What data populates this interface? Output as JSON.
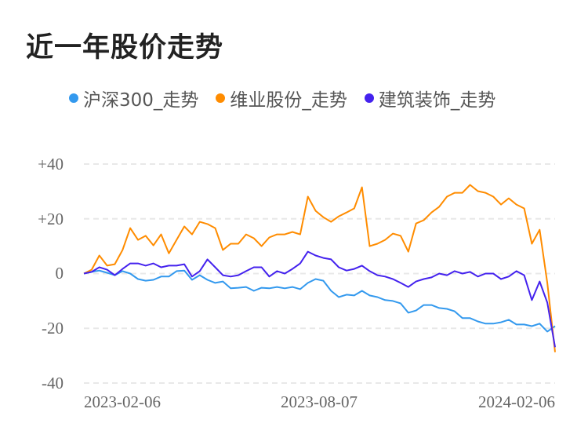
{
  "title": "近一年股价走势",
  "chart_data": {
    "type": "line",
    "title": "近一年股价走势",
    "x_tick_labels": [
      "2023-02-06",
      "2023-08-07",
      "2024-02-06"
    ],
    "y_tick_labels": [
      "+40",
      "+20",
      "0",
      "-20",
      "-40"
    ],
    "ylim": [
      -40,
      40
    ],
    "y_ticks": [
      40,
      20,
      0,
      -20,
      -40
    ],
    "grid": true,
    "legend_placement": "top",
    "series": [
      {
        "name": "沪深300_走势",
        "color": "#3399ee",
        "values": [
          0,
          0.6,
          1.1,
          0.3,
          -0.6,
          0.9,
          0,
          -2.0,
          -2.6,
          -2.3,
          -1.1,
          -1.1,
          0.9,
          1.1,
          -2.3,
          -0.6,
          -2.3,
          -3.4,
          -2.9,
          -5.4,
          -5.2,
          -4.9,
          -6.3,
          -5.2,
          -5.4,
          -4.9,
          -5.4,
          -4.9,
          -5.7,
          -3.4,
          -2.0,
          -2.6,
          -6.3,
          -8.6,
          -7.7,
          -8.0,
          -6.3,
          -8.0,
          -8.6,
          -9.7,
          -10.0,
          -10.9,
          -14.3,
          -13.5,
          -11.5,
          -11.5,
          -12.6,
          -12.9,
          -13.8,
          -16.3,
          -16.3,
          -17.5,
          -18.3,
          -18.3,
          -17.8,
          -16.9,
          -18.6,
          -18.6,
          -19.2,
          -18.3,
          -21.2,
          -19.2
        ]
      },
      {
        "name": "维业股份_走势",
        "color": "#ff8c00",
        "values": [
          0,
          1.4,
          6.6,
          2.9,
          3.4,
          8.6,
          16.6,
          12.3,
          13.8,
          10.3,
          14.3,
          7.4,
          12.3,
          17.2,
          14.3,
          18.9,
          18.1,
          16.6,
          8.6,
          10.9,
          10.9,
          14.3,
          12.9,
          10.0,
          13.2,
          14.3,
          14.3,
          15.2,
          14.3,
          28.1,
          22.9,
          20.6,
          18.9,
          20.9,
          22.3,
          23.8,
          31.5,
          10.0,
          10.9,
          12.3,
          14.6,
          13.8,
          8.0,
          18.3,
          19.5,
          22.3,
          24.4,
          28.1,
          29.5,
          29.5,
          32.4,
          30.1,
          29.5,
          28.1,
          25.2,
          27.5,
          25.2,
          23.8,
          10.9,
          16.0,
          -3.4,
          -28.7
        ]
      },
      {
        "name": "建筑装饰_走势",
        "color": "#4422ee",
        "values": [
          0,
          0.6,
          2.3,
          1.4,
          -0.6,
          1.7,
          3.7,
          3.7,
          2.9,
          3.7,
          2.3,
          2.9,
          2.9,
          3.4,
          -1.1,
          0.9,
          5.2,
          2.3,
          -0.6,
          -1.1,
          -0.6,
          0.9,
          2.3,
          2.3,
          -1.1,
          0.9,
          0,
          1.7,
          3.7,
          8.0,
          6.6,
          5.7,
          5.2,
          2.3,
          1.1,
          1.7,
          2.9,
          0.9,
          -0.6,
          -1.1,
          -2.0,
          -3.4,
          -4.9,
          -2.9,
          -2.0,
          -1.4,
          0,
          -0.6,
          0.9,
          0,
          0.6,
          -1.1,
          0,
          0,
          -2.0,
          -1.1,
          0.9,
          -0.6,
          -9.7,
          -2.9,
          -10.6,
          -26.9
        ]
      }
    ]
  }
}
